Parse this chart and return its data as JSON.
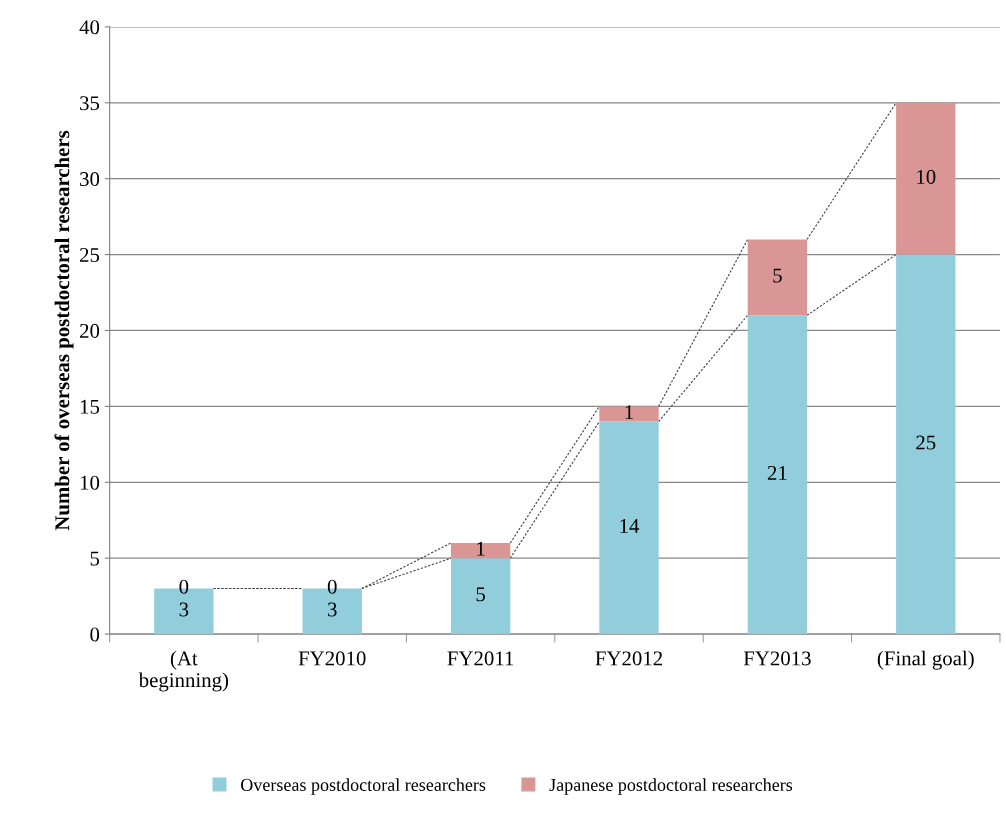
{
  "chart_data": {
    "type": "bar",
    "stacked": true,
    "ylabel": "Number of overseas postdoctoral researchers",
    "categories": [
      "(At beginning)",
      "FY2010",
      "FY2011",
      "FY2012",
      "FY2013",
      "(Final goal)"
    ],
    "series": [
      {
        "name": "Overseas postdoctoral researchers",
        "color": "#92cddc",
        "values": [
          3,
          3,
          5,
          14,
          21,
          25
        ]
      },
      {
        "name": "Japanese postdoctoral researchers",
        "color": "#d99694",
        "values": [
          0,
          0,
          1,
          1,
          5,
          10
        ]
      }
    ],
    "ylim": [
      0,
      40
    ],
    "yticks": [
      0,
      5,
      10,
      15,
      20,
      25,
      30,
      35,
      40
    ],
    "grid": "y",
    "data_labels": true,
    "legend": "bottom"
  }
}
